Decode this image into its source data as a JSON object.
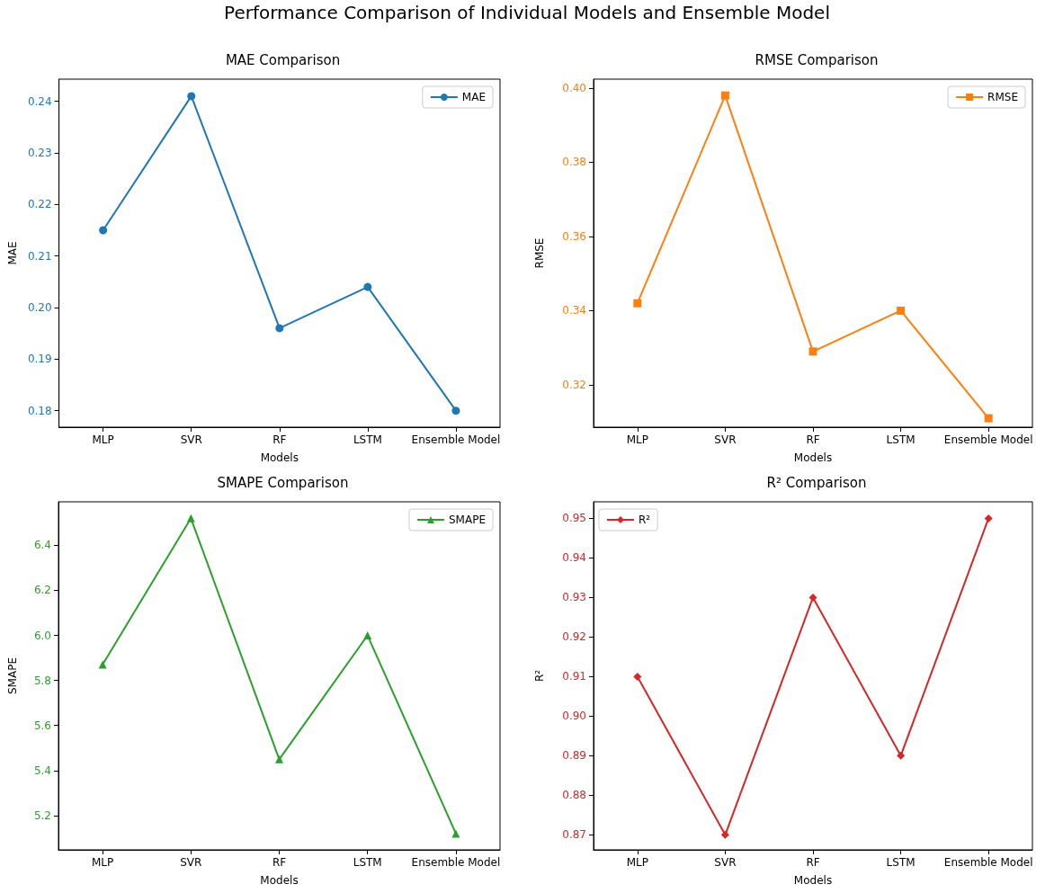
{
  "chart_data": [
    {
      "type": "line",
      "title": "MAE Comparison",
      "annotations": [
        "Performance Comparison of Individual Models and Ensemble Model"
      ],
      "xlabel": "Models",
      "ylabel": "MAE",
      "categories": [
        "MLP",
        "SVR",
        "RF",
        "LSTM",
        "Ensemble Model"
      ],
      "series": [
        {
          "name": "MAE",
          "color": "#1f77b4",
          "values": [
            0.215,
            0.241,
            0.196,
            0.204,
            0.18
          ]
        }
      ],
      "ylim": [
        0.1768,
        0.2443
      ],
      "yticks": [
        0.18,
        0.19,
        {
          "value": 0.2,
          "label": "0.20"
        },
        0.21,
        0.22,
        0.23,
        0.24
      ],
      "legend": "top right",
      "marker": "circle"
    },
    {
      "type": "line",
      "title": "RMSE Comparison",
      "xlabel": "Models",
      "ylabel": "RMSE",
      "categories": [
        "MLP",
        "SVR",
        "RF",
        "LSTM",
        "Ensemble Model"
      ],
      "series": [
        {
          "name": "RMSE",
          "color": "#ff7f0e",
          "values": [
            0.342,
            0.398,
            0.329,
            0.34,
            0.311
          ]
        }
      ],
      "ylim": [
        0.3086,
        0.4024
      ],
      "yticks": [
        0.32,
        0.34,
        0.36,
        0.38,
        {
          "value": 0.4,
          "label": "0.40"
        }
      ],
      "legend": "top right",
      "marker": "square"
    },
    {
      "type": "line",
      "title": "SMAPE Comparison",
      "xlabel": "Models",
      "ylabel": "SMAPE",
      "categories": [
        "MLP",
        "SVR",
        "RF",
        "LSTM",
        "Ensemble Model"
      ],
      "series": [
        {
          "name": "SMAPE",
          "color": "#2ca02c",
          "values": [
            5.87,
            6.52,
            5.45,
            6.0,
            5.12
          ]
        }
      ],
      "ylim": [
        5.048,
        6.593
      ],
      "yticks": [
        5.2,
        5.4,
        5.6,
        5.8,
        {
          "value": 6,
          "label": "6.0"
        },
        6.2,
        6.4
      ],
      "legend": "top right",
      "marker": "triangle"
    },
    {
      "type": "line",
      "title": "R² Comparison",
      "xlabel": "Models",
      "ylabel": "R²",
      "categories": [
        "MLP",
        "SVR",
        "RF",
        "LSTM",
        "Ensemble Model"
      ],
      "series": [
        {
          "name": "R²",
          "color": "#d62728",
          "values": [
            0.91,
            0.87,
            0.93,
            0.89,
            0.95
          ]
        }
      ],
      "ylim": [
        0.8662,
        0.9542
      ],
      "yticks": [
        0.87,
        0.88,
        0.89,
        {
          "value": 0.9,
          "label": "0.90"
        },
        0.91,
        0.92,
        0.93,
        0.94,
        0.95
      ],
      "legend": "top left",
      "marker": "diamond"
    }
  ]
}
